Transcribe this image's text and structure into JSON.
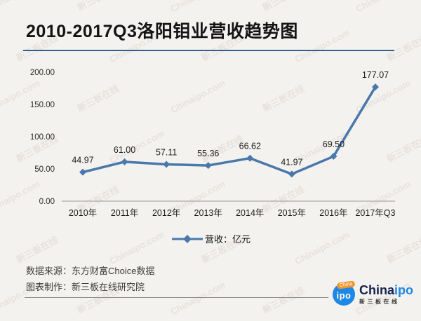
{
  "title": "2010-2017Q3洛阳钼业营收趋势图",
  "chart_data": {
    "type": "line",
    "title": "2010-2017Q3洛阳钼业营收趋势图",
    "categories": [
      "2010年",
      "2011年",
      "2012年",
      "2013年",
      "2014年",
      "2015年",
      "2016年",
      "2017年Q3"
    ],
    "series": [
      {
        "name": "营收",
        "values": [
          44.97,
          61.0,
          57.11,
          55.36,
          66.62,
          41.97,
          69.5,
          177.07
        ]
      }
    ],
    "unit": "亿元",
    "xlabel": "",
    "ylabel": "",
    "ylim": [
      0,
      200
    ],
    "y_ticks": [
      0,
      50,
      100,
      150,
      200
    ],
    "y_tick_labels": [
      "0.00",
      "50.00",
      "100.00",
      "150.00",
      "200.00"
    ],
    "grid": false,
    "legend_position": "bottom",
    "line_color": "#4a78ab",
    "marker": "diamond"
  },
  "legend": {
    "label": "营收：亿元"
  },
  "footer": {
    "source": "数据来源：东方财富Choice数据",
    "maker": "图表制作：新三板在线研究院"
  },
  "brand": {
    "badge_ribbon": "China",
    "badge_main": "ipo",
    "name_part1": "China",
    "name_part2": "ipo",
    "subtitle": "新三板在线",
    "badge_color": "#1e88e5",
    "ribbon_color": "#f0962e",
    "name_dark_color": "#15224d",
    "name_blue_color": "#1e88e5"
  },
  "watermark": {
    "texts": [
      "Chinaipo.com",
      "新三板在线"
    ]
  },
  "colors": {
    "background": "#f4f2ef",
    "accent_line": "#4a78ab",
    "title_underline": "#2e6093",
    "axis_line": "#999999",
    "label_text": "#1d1d1d"
  }
}
